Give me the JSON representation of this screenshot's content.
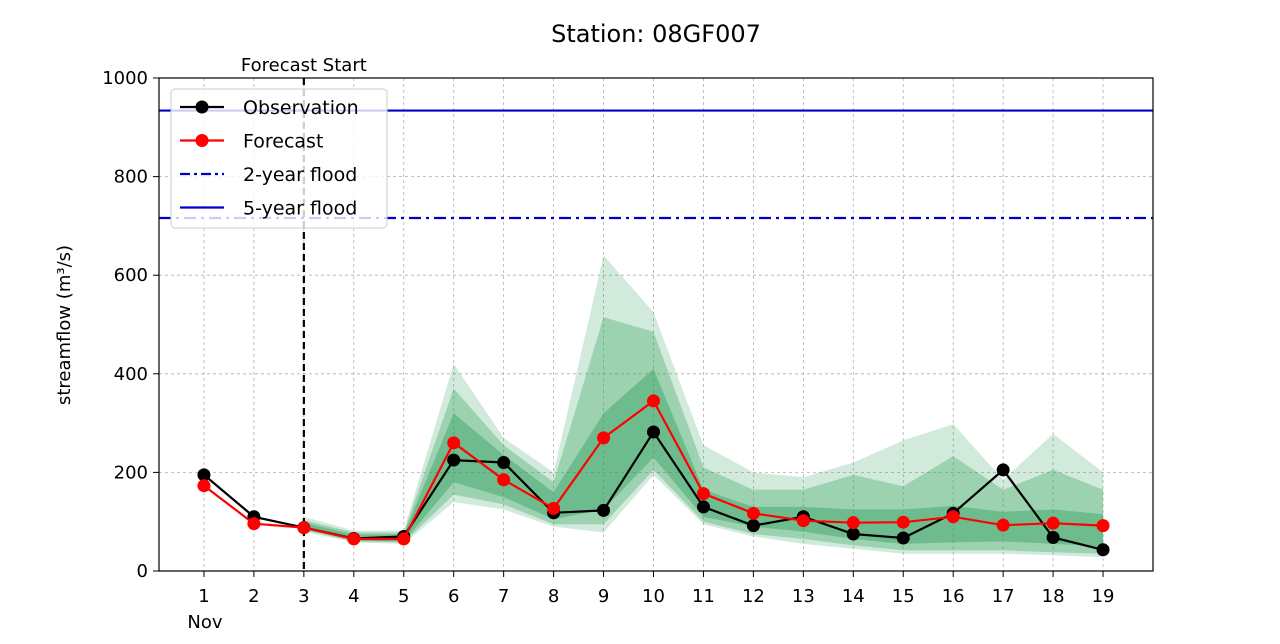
{
  "chart_data": {
    "type": "line",
    "title": "Station: 08GF007",
    "xlabel": "",
    "ylabel": "streamflow (m³/s)",
    "x": [
      1,
      2,
      3,
      4,
      5,
      6,
      7,
      8,
      9,
      10,
      11,
      12,
      13,
      14,
      15,
      16,
      17,
      18,
      19
    ],
    "x_tick_labels": [
      "1",
      "2",
      "3",
      "4",
      "5",
      "6",
      "7",
      "8",
      "9",
      "10",
      "11",
      "12",
      "13",
      "14",
      "15",
      "16",
      "17",
      "18",
      "19"
    ],
    "x_month_label": "Nov",
    "xlim": [
      0.1,
      20.0
    ],
    "ylim": [
      0,
      1000
    ],
    "y_ticks": [
      0,
      200,
      400,
      600,
      800,
      1000
    ],
    "grid": true,
    "legend_position": "upper-left",
    "forecast_start": {
      "x": 3,
      "label": "Forecast Start"
    },
    "series": [
      {
        "name": "Observation",
        "color": "#000000",
        "marker": "circle",
        "values": [
          195,
          110,
          88,
          66,
          70,
          225,
          220,
          118,
          123,
          282,
          130,
          92,
          110,
          75,
          67,
          117,
          205,
          68,
          43
        ]
      },
      {
        "name": "Forecast",
        "color": "#ff0000",
        "marker": "circle",
        "values": [
          173,
          96,
          88,
          65,
          65,
          260,
          185,
          127,
          270,
          345,
          157,
          117,
          102,
          98,
          99,
          110,
          93,
          97,
          92
        ]
      }
    ],
    "flood_levels": [
      {
        "name": "2-year flood",
        "value": 716,
        "color": "#0000cc",
        "style": "dashdot"
      },
      {
        "name": "5-year flood",
        "value": 934,
        "color": "#0000cc",
        "style": "solid"
      }
    ],
    "uncertainty_bands": [
      {
        "name": "outer",
        "lower": [
          null,
          null,
          80,
          58,
          55,
          140,
          125,
          90,
          78,
          195,
          95,
          70,
          55,
          45,
          35,
          35,
          35,
          32,
          28
        ],
        "upper": [
          null,
          null,
          110,
          82,
          82,
          420,
          270,
          200,
          640,
          525,
          255,
          200,
          190,
          220,
          265,
          298,
          185,
          278,
          200
        ],
        "color": "#2e9e5b",
        "opacity": 0.22
      },
      {
        "name": "middle",
        "lower": [
          null,
          null,
          83,
          60,
          58,
          155,
          135,
          95,
          95,
          205,
          100,
          75,
          65,
          52,
          42,
          42,
          42,
          38,
          35
        ],
        "upper": [
          null,
          null,
          103,
          78,
          78,
          370,
          255,
          180,
          515,
          485,
          210,
          165,
          165,
          195,
          172,
          233,
          165,
          205,
          165
        ],
        "color": "#2e9e5b",
        "opacity": 0.32
      },
      {
        "name": "inner",
        "lower": [
          null,
          null,
          85,
          62,
          60,
          180,
          150,
          105,
          125,
          230,
          110,
          90,
          80,
          65,
          55,
          58,
          60,
          55,
          50
        ],
        "upper": [
          null,
          null,
          98,
          74,
          74,
          320,
          235,
          160,
          320,
          410,
          165,
          130,
          130,
          125,
          125,
          132,
          120,
          125,
          115
        ],
        "color": "#2e9e5b",
        "opacity": 0.42
      }
    ]
  }
}
